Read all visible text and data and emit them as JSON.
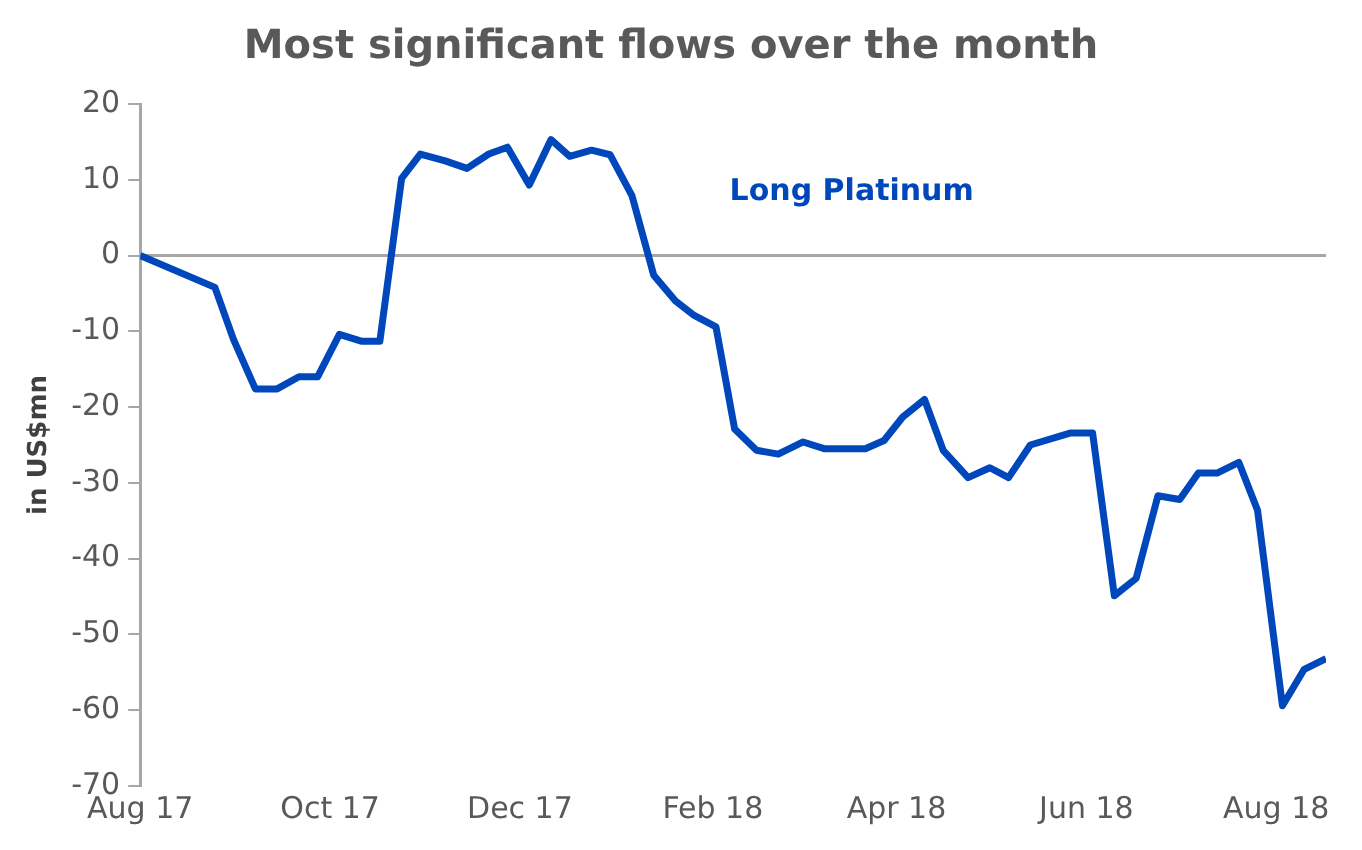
{
  "chart_data": {
    "type": "line",
    "title": "Most significant flows over the month",
    "ylabel": "in US$mn",
    "series": [
      {
        "name": "Long Platinum",
        "color": "#0047bb",
        "x": [
          "2017-08-01",
          "2017-08-25",
          "2017-08-31",
          "2017-09-07",
          "2017-09-14",
          "2017-09-21",
          "2017-09-27",
          "2017-10-04",
          "2017-10-11",
          "2017-10-17",
          "2017-10-24",
          "2017-10-30",
          "2017-11-07",
          "2017-11-14",
          "2017-11-21",
          "2017-11-27",
          "2017-12-04",
          "2017-12-11",
          "2017-12-17",
          "2017-12-24",
          "2017-12-30",
          "2018-01-06",
          "2018-01-13",
          "2018-01-20",
          "2018-01-26",
          "2018-02-02",
          "2018-02-08",
          "2018-02-15",
          "2018-02-22",
          "2018-03-02",
          "2018-03-09",
          "2018-03-22",
          "2018-03-28",
          "2018-04-03",
          "2018-04-10",
          "2018-04-16",
          "2018-04-24",
          "2018-05-01",
          "2018-05-07",
          "2018-05-14",
          "2018-05-27",
          "2018-06-03",
          "2018-06-10",
          "2018-06-17",
          "2018-06-24",
          "2018-07-01",
          "2018-07-07",
          "2018-07-13",
          "2018-07-20",
          "2018-07-26",
          "2018-08-03",
          "2018-08-10",
          "2018-08-17"
        ],
        "values": [
          0,
          -4.2,
          -11.1,
          -17.6,
          -17.6,
          -16,
          -16,
          -10.4,
          -11.3,
          -11.3,
          10.2,
          13.4,
          12.5,
          11.5,
          13.4,
          14.3,
          9.3,
          15.3,
          13.1,
          13.9,
          13.3,
          7.9,
          -2.6,
          -6,
          -7.9,
          -9.4,
          -22.9,
          -25.7,
          -26.2,
          -24.6,
          -25.5,
          -25.5,
          -24.4,
          -21.3,
          -19,
          -25.7,
          -29.3,
          -28,
          -29.3,
          -25,
          -23.4,
          -23.4,
          -44.9,
          -42.6,
          -31.7,
          -32.2,
          -28.7,
          -28.7,
          -27.3,
          -33.6,
          -59.4,
          -54.6,
          -53.2
        ]
      }
    ],
    "xlim": [
      "2017-08-01",
      "2018-08-17"
    ],
    "xticks": [
      {
        "value": "2017-08-01",
        "label": "Aug 17"
      },
      {
        "value": "2017-10-01",
        "label": "Oct 17"
      },
      {
        "value": "2017-12-01",
        "label": "Dec 17"
      },
      {
        "value": "2018-02-01",
        "label": "Feb 18"
      },
      {
        "value": "2018-04-01",
        "label": "Apr 18"
      },
      {
        "value": "2018-06-01",
        "label": "Jun 18"
      },
      {
        "value": "2018-08-01",
        "label": "Aug 18"
      }
    ],
    "ylim": [
      -70,
      20
    ],
    "yticks": [
      -70,
      -60,
      -50,
      -40,
      -30,
      -20,
      -10,
      0,
      10,
      20
    ],
    "ref_lines": [
      {
        "axis": "y",
        "value": 0,
        "color": "#a6a6a6"
      }
    ],
    "grid": false,
    "legend": false,
    "marker": "none",
    "line_style": "solid"
  }
}
